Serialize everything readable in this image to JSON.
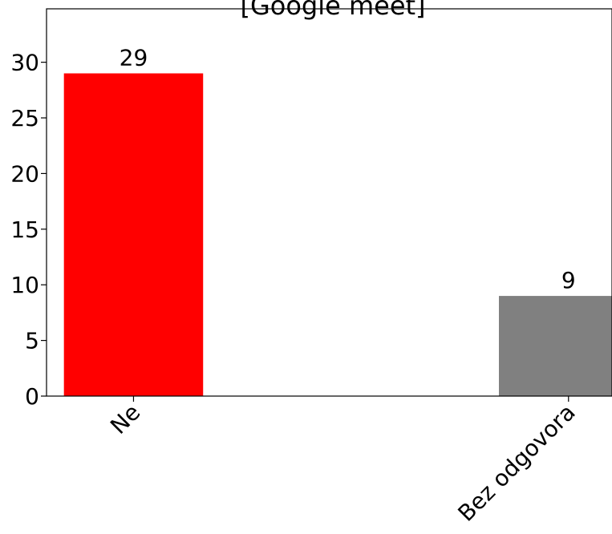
{
  "chart_data": {
    "type": "bar",
    "title": "[Google meet]",
    "xlabel": "",
    "ylabel": "",
    "categories": [
      "Ne",
      "Bez odgovora"
    ],
    "values": [
      29,
      9
    ],
    "data_labels": [
      "29",
      "9"
    ],
    "bar_colors": [
      "#ff0000",
      "#808080"
    ],
    "ylim": [
      0,
      34.8
    ],
    "yticks": [
      0,
      5,
      10,
      15,
      20,
      25,
      30
    ],
    "ytick_labels": [
      "0",
      "5",
      "10",
      "15",
      "20",
      "25",
      "30"
    ],
    "grid": false,
    "legend": false
  }
}
